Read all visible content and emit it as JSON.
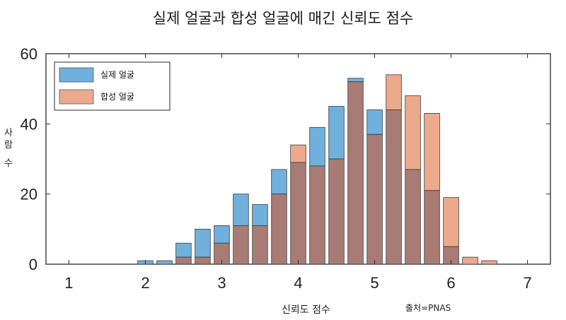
{
  "title": "실제 얼굴과 합성 얼굴에 매긴 신뢰도 점수",
  "source": "출처=PNAS",
  "chart_data": {
    "type": "bar",
    "xlabel": "신뢰도 점수",
    "ylabel": "사람 수",
    "xlim": [
      0.7,
      7.3
    ],
    "ylim": [
      0,
      60
    ],
    "xticks": [
      1,
      2,
      3,
      4,
      5,
      6,
      7
    ],
    "yticks": [
      0,
      20,
      40,
      60
    ],
    "legend_position": "top-left",
    "bin_centers": [
      2.0,
      2.25,
      2.5,
      2.75,
      3.0,
      3.25,
      3.5,
      3.75,
      4.0,
      4.25,
      4.5,
      4.75,
      5.0,
      5.25,
      5.5,
      5.75,
      6.0,
      6.25,
      6.5
    ],
    "series": [
      {
        "name": "실제 얼굴",
        "color": "#6fb0dd",
        "values": [
          1,
          1,
          6,
          10,
          11,
          20,
          17,
          27,
          29,
          39,
          45,
          53,
          44,
          44,
          27,
          21,
          5,
          0,
          0
        ]
      },
      {
        "name": "합성 얼굴",
        "color": "#eca98c",
        "values": [
          0,
          0,
          2,
          2,
          6,
          11,
          11,
          20,
          34,
          28,
          30,
          52,
          37,
          54,
          48,
          43,
          19,
          2,
          1
        ]
      }
    ],
    "overlap_color": "#a87b74"
  }
}
